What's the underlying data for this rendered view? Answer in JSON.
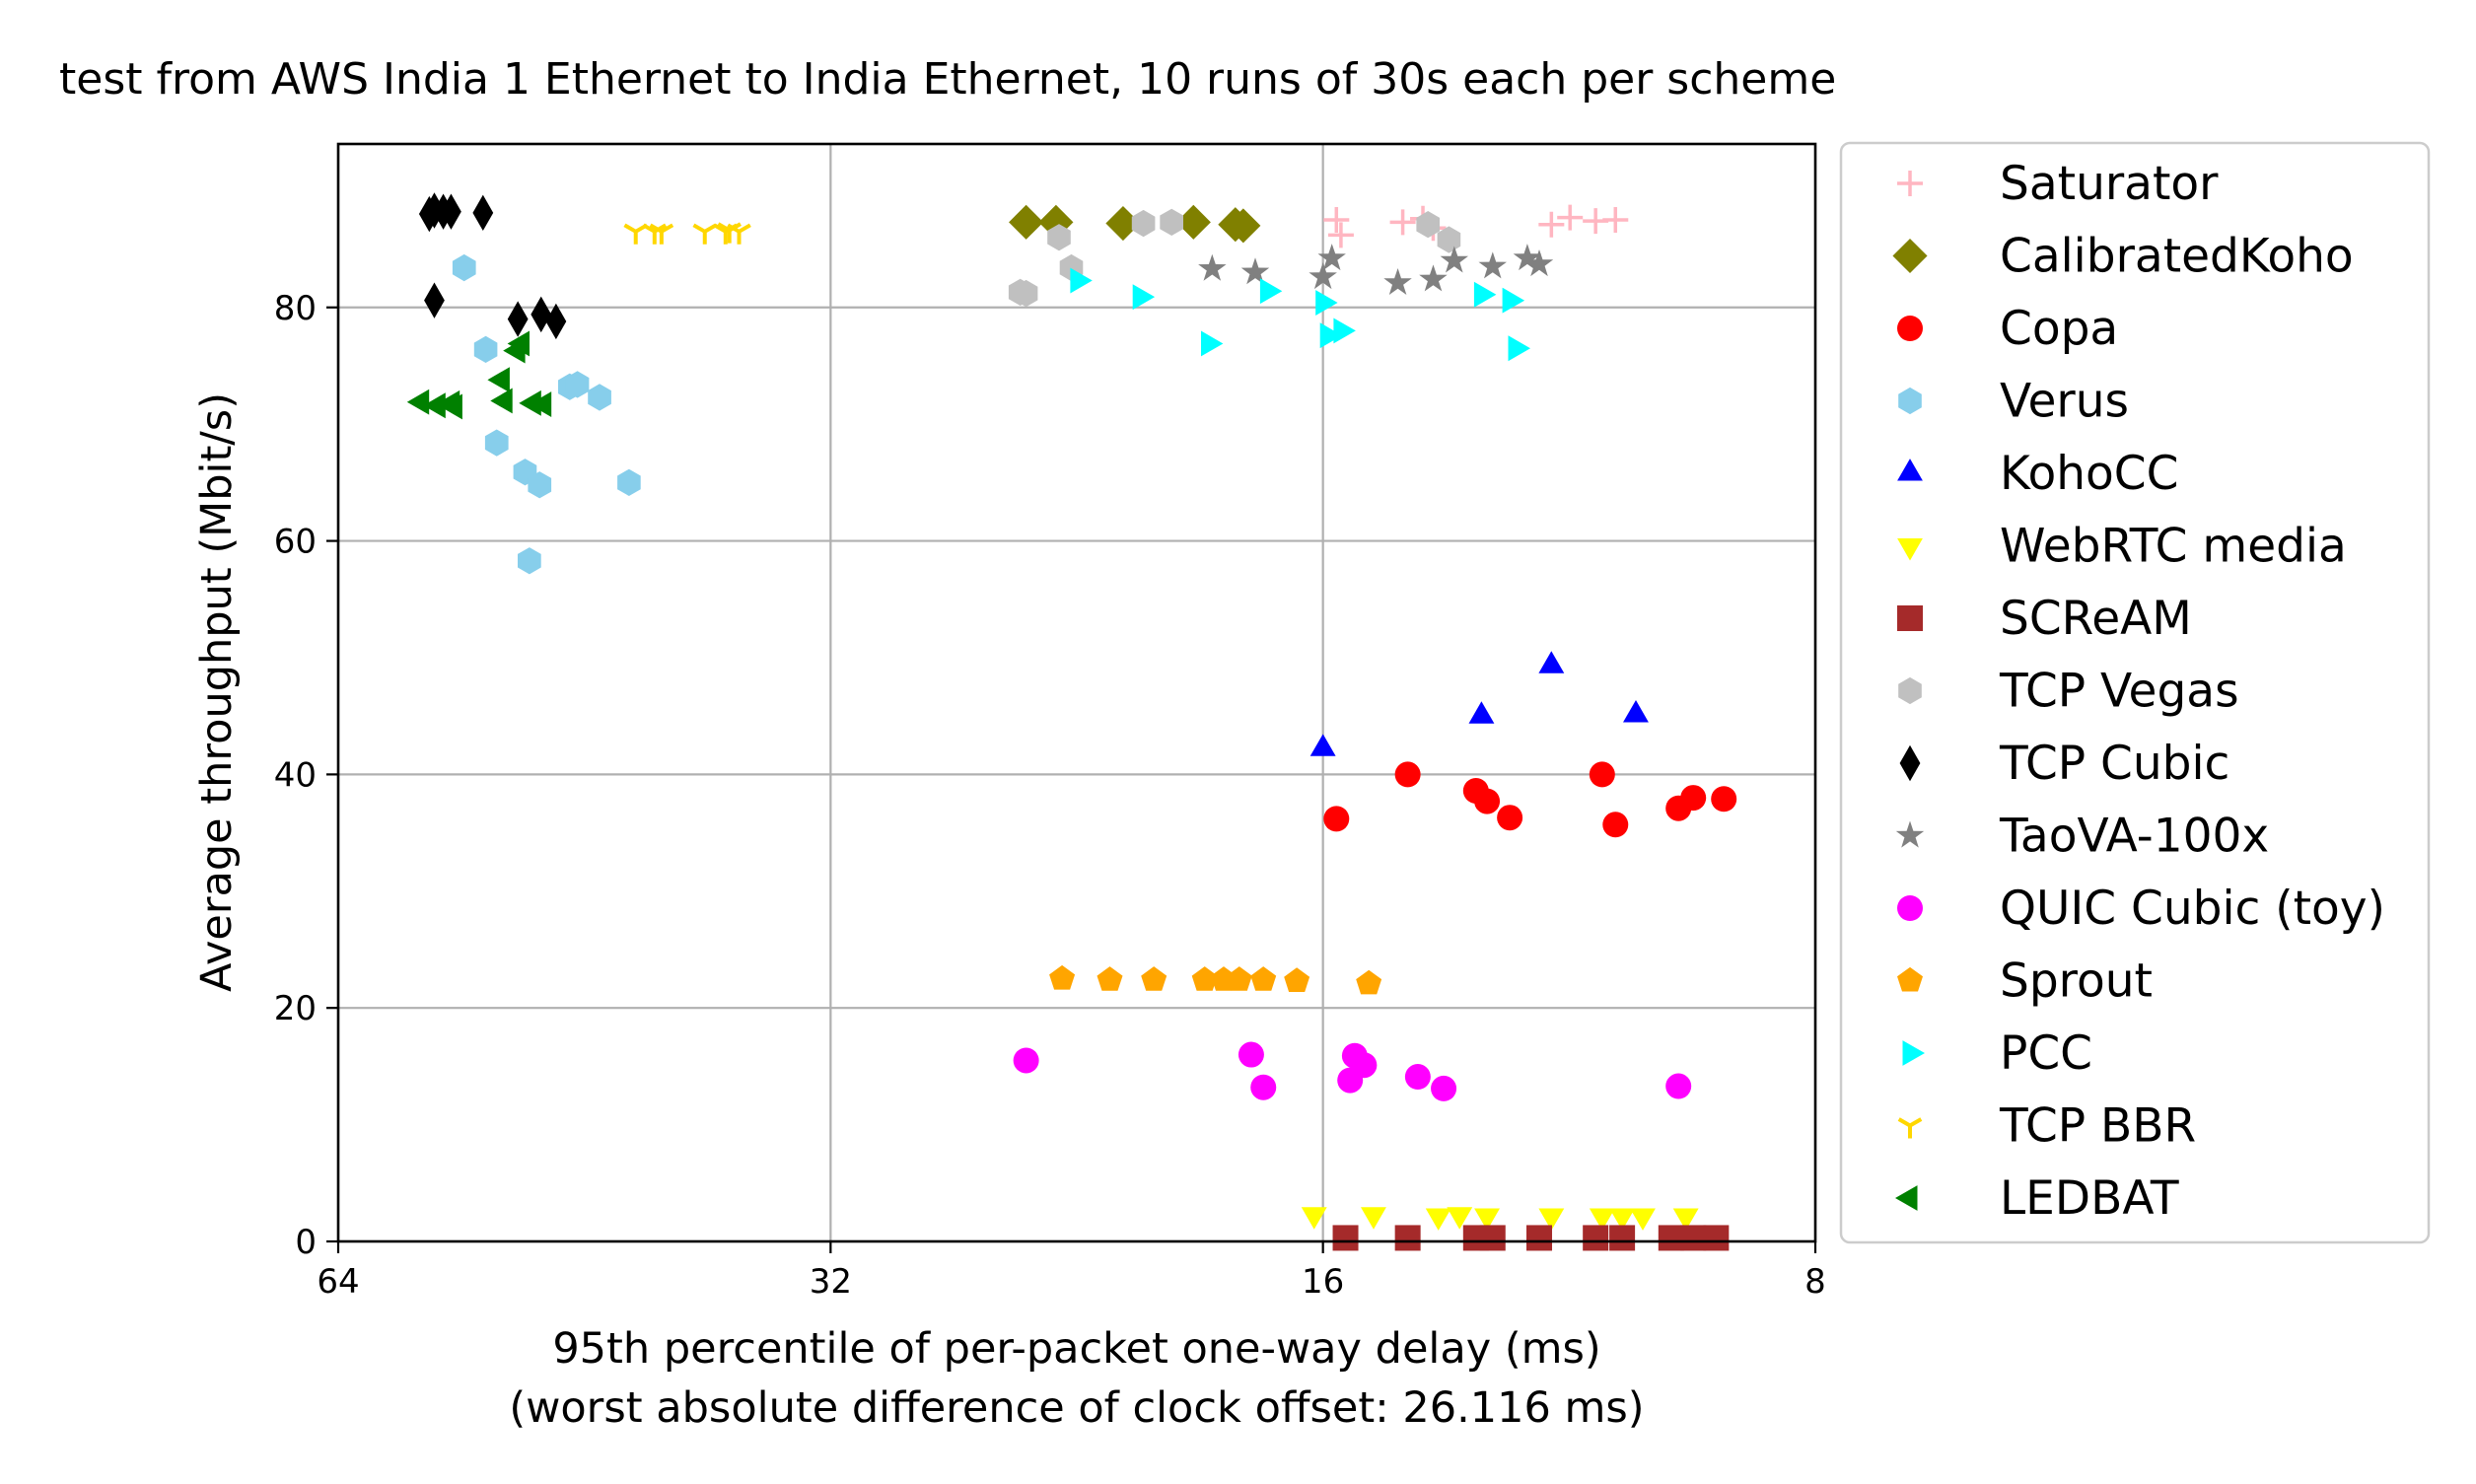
{
  "chart_data": {
    "type": "scatter",
    "title": "test from AWS India 1 Ethernet to India Ethernet, 10 runs of 30s each per scheme",
    "xlabel": "95th percentile of per-packet one-way delay (ms)",
    "xlabel2": "(worst absolute difference of clock offset: 26.116 ms)",
    "ylabel": "Average throughput (Mbit/s)",
    "x_scale": "log2",
    "x_inverted": true,
    "xlim": [
      64,
      8
    ],
    "ylim": [
      0,
      94
    ],
    "x_ticks": [
      64,
      32,
      16,
      8
    ],
    "x_tick_labels": [
      "64",
      "32",
      "16",
      "8"
    ],
    "y_ticks": [
      0,
      20,
      40,
      60,
      80
    ],
    "y_tick_labels": [
      "0",
      "20",
      "40",
      "60",
      "80"
    ],
    "grid": true,
    "legend_position": "outside-right",
    "series": [
      {
        "name": "Saturator",
        "marker": "plus",
        "color": "#ffb6c1",
        "points": [
          [
            15.7,
            87.5
          ],
          [
            15.6,
            86.2
          ],
          [
            14.3,
            87.3
          ],
          [
            13.9,
            87.6
          ],
          [
            13.7,
            86.8
          ],
          [
            11.6,
            87.1
          ],
          [
            11.3,
            87.7
          ],
          [
            10.9,
            87.4
          ],
          [
            10.6,
            87.5
          ]
        ]
      },
      {
        "name": "CalibratedKoho",
        "marker": "diamond",
        "color": "#808000",
        "points": [
          [
            24.3,
            87.3
          ],
          [
            23.3,
            87.3
          ],
          [
            21.2,
            87.2
          ],
          [
            19.2,
            87.3
          ],
          [
            18.1,
            87.1
          ],
          [
            17.9,
            87.0
          ]
        ]
      },
      {
        "name": "Copa",
        "marker": "circle",
        "color": "#ff0000",
        "points": [
          [
            15.7,
            36.2
          ],
          [
            14.2,
            40.0
          ],
          [
            12.9,
            38.6
          ],
          [
            12.7,
            37.7
          ],
          [
            12.3,
            36.3
          ],
          [
            10.8,
            40.0
          ],
          [
            10.6,
            35.7
          ],
          [
            9.7,
            37.1
          ],
          [
            9.5,
            38.0
          ],
          [
            9.1,
            37.9
          ]
        ]
      },
      {
        "name": "Verus",
        "marker": "hexagon",
        "color": "#87ceeb",
        "points": [
          [
            53.6,
            83.4
          ],
          [
            52.0,
            76.4
          ],
          [
            51.2,
            68.4
          ],
          [
            49.2,
            65.9
          ],
          [
            48.9,
            58.3
          ],
          [
            48.2,
            64.8
          ],
          [
            46.2,
            73.2
          ],
          [
            45.7,
            73.4
          ],
          [
            44.3,
            72.3
          ],
          [
            42.5,
            65.0
          ]
        ]
      },
      {
        "name": "KohoCC",
        "marker": "triangle-up",
        "color": "#0000ff",
        "points": [
          [
            16.0,
            42.2
          ],
          [
            12.8,
            45.0
          ],
          [
            11.6,
            49.3
          ],
          [
            10.3,
            45.1
          ]
        ]
      },
      {
        "name": "WebRTC media",
        "marker": "triangle-down",
        "color": "#ffff00",
        "points": [
          [
            16.2,
            2.3
          ],
          [
            14.9,
            2.3
          ],
          [
            13.6,
            2.2
          ],
          [
            13.2,
            2.3
          ],
          [
            12.7,
            2.2
          ],
          [
            11.6,
            2.2
          ],
          [
            10.8,
            2.2
          ],
          [
            10.5,
            2.2
          ],
          [
            10.2,
            2.2
          ],
          [
            9.6,
            2.2
          ]
        ]
      },
      {
        "name": "SCReAM",
        "marker": "square",
        "color": "#a52a2a",
        "points": [
          [
            15.5,
            0.3
          ],
          [
            14.2,
            0.3
          ],
          [
            12.9,
            0.3
          ],
          [
            12.6,
            0.3
          ],
          [
            11.8,
            0.3
          ],
          [
            10.9,
            0.3
          ],
          [
            10.5,
            0.3
          ],
          [
            9.8,
            0.3
          ],
          [
            9.5,
            0.3
          ],
          [
            9.2,
            0.3
          ]
        ]
      },
      {
        "name": "TCP Vegas",
        "marker": "hexagon",
        "color": "#c0c0c0",
        "points": [
          [
            24.5,
            81.3
          ],
          [
            24.3,
            81.2
          ],
          [
            23.2,
            86.0
          ],
          [
            22.8,
            83.4
          ],
          [
            20.6,
            87.2
          ],
          [
            19.8,
            87.3
          ],
          [
            13.8,
            87.1
          ],
          [
            13.4,
            85.8
          ]
        ]
      },
      {
        "name": "TCP Cubic",
        "marker": "thin-diamond",
        "color": "#000000",
        "points": [
          [
            56.3,
            88.0
          ],
          [
            55.9,
            88.3
          ],
          [
            55.2,
            88.2
          ],
          [
            54.6,
            88.2
          ],
          [
            52.2,
            88.1
          ],
          [
            55.9,
            80.6
          ],
          [
            49.7,
            79.0
          ],
          [
            48.1,
            79.4
          ],
          [
            47.1,
            78.8
          ]
        ]
      },
      {
        "name": "TaoVA-100x",
        "marker": "star",
        "color": "#808080",
        "points": [
          [
            18.7,
            83.3
          ],
          [
            17.6,
            83.0
          ],
          [
            16.0,
            82.6
          ],
          [
            15.8,
            84.2
          ],
          [
            14.4,
            82.1
          ],
          [
            13.7,
            82.4
          ],
          [
            13.3,
            84.0
          ],
          [
            12.6,
            83.5
          ],
          [
            11.8,
            83.7
          ],
          [
            12.0,
            84.2
          ]
        ]
      },
      {
        "name": "QUIC Cubic (toy)",
        "marker": "circle",
        "color": "#ff00ff",
        "points": [
          [
            24.3,
            15.5
          ],
          [
            17.7,
            16.0
          ],
          [
            17.4,
            13.2
          ],
          [
            15.4,
            13.8
          ],
          [
            15.1,
            15.1
          ],
          [
            15.3,
            15.9
          ],
          [
            14.0,
            14.1
          ],
          [
            13.5,
            13.1
          ],
          [
            9.7,
            13.3
          ]
        ]
      },
      {
        "name": "Sprout",
        "marker": "pentagon",
        "color": "#ffa500",
        "points": [
          [
            23.1,
            22.5
          ],
          [
            21.6,
            22.4
          ],
          [
            20.3,
            22.4
          ],
          [
            18.9,
            22.4
          ],
          [
            18.4,
            22.4
          ],
          [
            18.0,
            22.4
          ],
          [
            17.4,
            22.4
          ],
          [
            16.6,
            22.3
          ],
          [
            15.0,
            22.1
          ]
        ]
      },
      {
        "name": "PCC",
        "marker": "triangle-right",
        "color": "#00ffff",
        "points": [
          [
            22.6,
            82.3
          ],
          [
            20.7,
            80.9
          ],
          [
            18.8,
            76.9
          ],
          [
            17.3,
            81.4
          ],
          [
            16.0,
            80.4
          ],
          [
            15.9,
            77.6
          ],
          [
            15.6,
            78.0
          ],
          [
            12.8,
            81.1
          ],
          [
            12.3,
            80.6
          ],
          [
            12.2,
            76.5
          ]
        ]
      },
      {
        "name": "TCP BBR",
        "marker": "tri-down",
        "color": "#ffd700",
        "points": [
          [
            42.1,
            86.5
          ],
          [
            41.0,
            86.5
          ],
          [
            40.6,
            86.5
          ],
          [
            38.2,
            86.5
          ],
          [
            37.1,
            86.5
          ],
          [
            36.4,
            86.5
          ],
          [
            36.9,
            86.6
          ]
        ]
      },
      {
        "name": "LEDBAT",
        "marker": "triangle-left",
        "color": "#008000",
        "points": [
          [
            56.9,
            71.9
          ],
          [
            55.6,
            71.6
          ],
          [
            54.5,
            71.8
          ],
          [
            54.3,
            71.5
          ],
          [
            50.8,
            73.8
          ],
          [
            50.6,
            72.0
          ],
          [
            49.7,
            76.3
          ],
          [
            49.4,
            76.9
          ],
          [
            48.6,
            71.8
          ],
          [
            47.9,
            71.7
          ]
        ]
      }
    ]
  }
}
